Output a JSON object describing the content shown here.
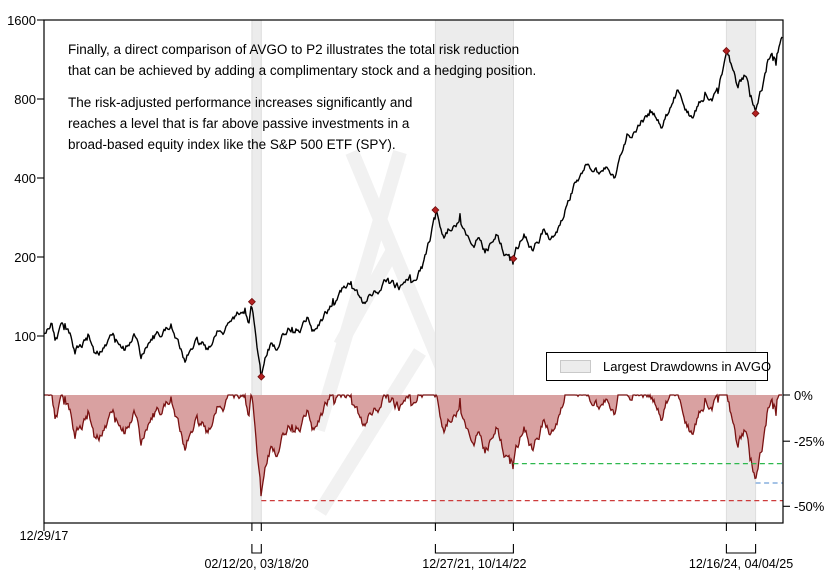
{
  "annotation": {
    "para1_line1": "Finally, a direct comparison of AVGO to P2 illustrates the total risk reduction",
    "para1_line2": "that can be achieved by adding a complimentary stock and a hedging position.",
    "para2_line1": "The risk-adjusted performance increases significantly and",
    "para2_line2": "reaches a level that is far above passive investments in a",
    "para2_line3": "broad-based equity index like the S&P 500 ETF (SPY)."
  },
  "legend": {
    "label": "Largest Drawdowns in AVGO"
  },
  "axes": {
    "x_start_label": "12/29/17",
    "x_start_date": "2017-12-29",
    "x_end_date": "2025-07-15",
    "price_scale": "log",
    "price_ticks": [
      1600,
      800,
      400,
      200,
      100
    ],
    "drawdown_scale": "log-ratio",
    "dd_ticks": [
      {
        "label": "0%",
        "value": 0
      },
      {
        "label": "-25%",
        "value": -0.25
      },
      {
        "label": "-50%",
        "value": -0.5
      }
    ]
  },
  "chart_data": {
    "type": "line",
    "series_name": "AVGO growth of 100 (log scale) with drawdown panel",
    "ylim_price": [
      60,
      1600
    ],
    "grid": false,
    "legend_position": "middle-right",
    "points": [
      [
        "2017-12-29",
        102
      ],
      [
        "2018-01-26",
        110
      ],
      [
        "2018-02-09",
        97
      ],
      [
        "2018-03-12",
        112
      ],
      [
        "2018-04-25",
        88
      ],
      [
        "2018-06-08",
        102
      ],
      [
        "2018-07-05",
        86
      ],
      [
        "2018-09-20",
        100
      ],
      [
        "2018-10-24",
        88
      ],
      [
        "2018-11-28",
        103
      ],
      [
        "2018-12-24",
        85
      ],
      [
        "2019-02-08",
        98
      ],
      [
        "2019-04-17",
        107
      ],
      [
        "2019-06-03",
        80
      ],
      [
        "2019-07-24",
        97
      ],
      [
        "2019-08-23",
        89
      ],
      [
        "2019-10-09",
        103
      ],
      [
        "2019-12-06",
        116
      ],
      [
        "2020-01-17",
        122
      ],
      [
        "2020-01-31",
        112
      ],
      [
        "2020-02-12",
        135
      ],
      [
        "2020-03-18",
        70
      ],
      [
        "2020-04-17",
        95
      ],
      [
        "2020-05-14",
        88
      ],
      [
        "2020-06-05",
        100
      ],
      [
        "2020-07-10",
        104
      ],
      [
        "2020-09-02",
        117
      ],
      [
        "2020-09-24",
        105
      ],
      [
        "2020-12-10",
        133
      ],
      [
        "2021-02-16",
        155
      ],
      [
        "2021-03-25",
        138
      ],
      [
        "2021-05-12",
        143
      ],
      [
        "2021-07-02",
        162
      ],
      [
        "2021-08-19",
        152
      ],
      [
        "2021-09-24",
        166
      ],
      [
        "2021-10-04",
        158
      ],
      [
        "2021-11-08",
        185
      ],
      [
        "2021-12-06",
        230
      ],
      [
        "2021-12-27",
        302
      ],
      [
        "2022-01-28",
        235
      ],
      [
        "2022-03-29",
        272
      ],
      [
        "2022-05-12",
        222
      ],
      [
        "2022-06-07",
        242
      ],
      [
        "2022-07-01",
        208
      ],
      [
        "2022-08-15",
        250
      ],
      [
        "2022-09-30",
        206
      ],
      [
        "2022-10-14",
        197
      ],
      [
        "2022-11-23",
        238
      ],
      [
        "2022-12-28",
        215
      ],
      [
        "2023-02-02",
        252
      ],
      [
        "2023-03-13",
        238
      ],
      [
        "2023-05-30",
        380
      ],
      [
        "2023-07-12",
        450
      ],
      [
        "2023-08-24",
        410
      ],
      [
        "2023-09-12",
        430
      ],
      [
        "2023-10-26",
        390
      ],
      [
        "2023-12-13",
        580
      ],
      [
        "2024-01-23",
        620
      ],
      [
        "2024-03-07",
        700
      ],
      [
        "2024-04-19",
        620
      ],
      [
        "2024-06-18",
        880
      ],
      [
        "2024-08-05",
        680
      ],
      [
        "2024-09-26",
        820
      ],
      [
        "2024-10-23",
        790
      ],
      [
        "2024-11-14",
        860
      ],
      [
        "2024-12-16",
        1220
      ],
      [
        "2025-01-27",
        890
      ],
      [
        "2025-02-25",
        1010
      ],
      [
        "2025-03-13",
        855
      ],
      [
        "2025-04-04",
        705
      ],
      [
        "2025-05-14",
        1060
      ],
      [
        "2025-06-06",
        1180
      ],
      [
        "2025-06-20",
        1130
      ],
      [
        "2025-07-10",
        1380
      ]
    ],
    "markers": [
      {
        "date": "2020-02-12",
        "value": 135
      },
      {
        "date": "2020-03-18",
        "value": 70
      },
      {
        "date": "2021-12-27",
        "value": 302
      },
      {
        "date": "2022-10-14",
        "value": 197
      },
      {
        "date": "2024-12-16",
        "value": 1220
      },
      {
        "date": "2025-04-04",
        "value": 705
      }
    ],
    "drawdown_periods": [
      {
        "start": "2020-02-12",
        "end": "2020-03-18",
        "label": "02/12/20, 03/18/20"
      },
      {
        "start": "2021-12-27",
        "end": "2022-10-14",
        "label": "12/27/21, 10/14/22"
      },
      {
        "start": "2024-12-16",
        "end": "2025-04-04",
        "label": "12/16/24, 04/04/25"
      }
    ],
    "reference_lines": [
      {
        "from": "2020-03-18",
        "drawdown": -0.482,
        "color": "#cd3b3b",
        "style": "dashed"
      },
      {
        "from": "2022-10-14",
        "drawdown": -0.348,
        "color": "#2db84d",
        "style": "dashed"
      },
      {
        "from": "2025-04-04",
        "drawdown": -0.422,
        "color": "#6f9fd8",
        "style": "dashed"
      }
    ]
  },
  "colors": {
    "price_line": "#000000",
    "drawdown_line": "#7a1212",
    "drawdown_fill": "#d9a1a1",
    "band_fill": "#ececec",
    "band_edge": "#dedede",
    "marker_fill": "#b42020",
    "marker_edge": "#6d0d0d",
    "frame": "#000000",
    "watermark": "#efefef"
  }
}
